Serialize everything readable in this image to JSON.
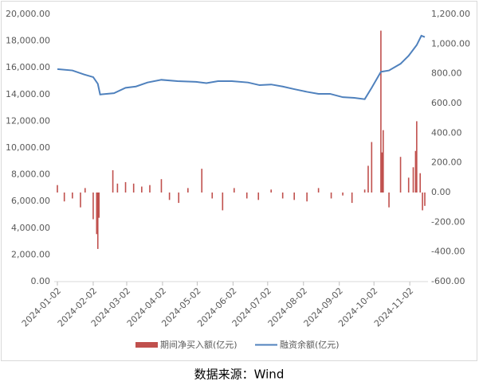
{
  "chart_data": {
    "type": "bar-line",
    "source": "数据来源：Wind",
    "xlim": [
      "2024-01-02",
      "2024-11-15"
    ],
    "xticks": [
      "2024-01-02",
      "2024-02-02",
      "2024-03-02",
      "2024-04-02",
      "2024-05-02",
      "2024-06-02",
      "2024-07-02",
      "2024-08-02",
      "2024-09-02",
      "2024-10-02",
      "2024-11-02"
    ],
    "ylim": [
      0,
      20000
    ],
    "yticks": [
      {
        "value": 0,
        "label": "0.00"
      },
      {
        "value": 2000,
        "label": "2,000.00"
      },
      {
        "value": 4000,
        "label": "4,000.00"
      },
      {
        "value": 6000,
        "label": "6,000.00"
      },
      {
        "value": 8000,
        "label": "8,000.00"
      },
      {
        "value": 10000,
        "label": "10,000.00"
      },
      {
        "value": 12000,
        "label": "12,000.00"
      },
      {
        "value": 14000,
        "label": "14,000.00"
      },
      {
        "value": 16000,
        "label": "16,000.00"
      },
      {
        "value": 18000,
        "label": "18,000.00"
      },
      {
        "value": 20000,
        "label": "20,000.00"
      }
    ],
    "y2lim": [
      -600,
      1200
    ],
    "y2ticks": [
      {
        "value": -600,
        "label": "-600.00"
      },
      {
        "value": -400,
        "label": "-400.00"
      },
      {
        "value": -200,
        "label": "-200.00"
      },
      {
        "value": 0,
        "label": "0.00"
      },
      {
        "value": 200,
        "label": "200.00"
      },
      {
        "value": 400,
        "label": "400.00"
      },
      {
        "value": 600,
        "label": "600.00"
      },
      {
        "value": 800,
        "label": "800.00"
      },
      {
        "value": 1000,
        "label": "1,000.00"
      },
      {
        "value": 1200,
        "label": "1,200.00"
      }
    ],
    "series": [
      {
        "name": "期间净买入额(亿元)",
        "type": "bar",
        "axis": "y2",
        "color": "#c0504d",
        "x": [
          "2024-01-02",
          "2024-01-08",
          "2024-01-15",
          "2024-01-22",
          "2024-01-26",
          "2024-02-02",
          "2024-02-05",
          "2024-02-06",
          "2024-02-07",
          "2024-02-19",
          "2024-02-23",
          "2024-03-01",
          "2024-03-08",
          "2024-03-15",
          "2024-03-22",
          "2024-04-01",
          "2024-04-08",
          "2024-04-16",
          "2024-04-24",
          "2024-05-06",
          "2024-05-15",
          "2024-05-24",
          "2024-06-03",
          "2024-06-14",
          "2024-06-24",
          "2024-07-05",
          "2024-07-15",
          "2024-07-25",
          "2024-08-05",
          "2024-08-15",
          "2024-08-26",
          "2024-09-05",
          "2024-09-13",
          "2024-09-24",
          "2024-09-27",
          "2024-09-30",
          "2024-10-08",
          "2024-10-09",
          "2024-10-10",
          "2024-10-15",
          "2024-10-25",
          "2024-11-01",
          "2024-11-05",
          "2024-11-07",
          "2024-11-08",
          "2024-11-11",
          "2024-11-13",
          "2024-11-15"
        ],
        "values": [
          50,
          -60,
          -40,
          -100,
          30,
          -180,
          -280,
          -380,
          -170,
          150,
          60,
          70,
          60,
          40,
          50,
          90,
          -50,
          -70,
          30,
          160,
          -40,
          -120,
          30,
          -40,
          -50,
          20,
          -40,
          -50,
          -60,
          30,
          -40,
          -20,
          -70,
          20,
          180,
          340,
          1090,
          270,
          420,
          -100,
          240,
          100,
          170,
          280,
          480,
          130,
          -120,
          -90
        ]
      },
      {
        "name": "融资余额(亿元)",
        "type": "line",
        "axis": "y",
        "color": "#4f81bd",
        "x": [
          "2024-01-02",
          "2024-01-15",
          "2024-01-25",
          "2024-02-02",
          "2024-02-06",
          "2024-02-08",
          "2024-02-20",
          "2024-03-01",
          "2024-03-10",
          "2024-03-20",
          "2024-04-01",
          "2024-04-15",
          "2024-05-01",
          "2024-05-10",
          "2024-05-20",
          "2024-06-01",
          "2024-06-15",
          "2024-06-25",
          "2024-07-05",
          "2024-07-15",
          "2024-07-25",
          "2024-08-05",
          "2024-08-15",
          "2024-08-25",
          "2024-09-05",
          "2024-09-15",
          "2024-09-24",
          "2024-09-30",
          "2024-10-08",
          "2024-10-15",
          "2024-10-25",
          "2024-11-01",
          "2024-11-08",
          "2024-11-12",
          "2024-11-15"
        ],
        "values": [
          15900,
          15800,
          15500,
          15300,
          14800,
          14000,
          14100,
          14500,
          14600,
          14900,
          15100,
          15000,
          14950,
          14850,
          15000,
          15000,
          14900,
          14700,
          14750,
          14600,
          14400,
          14200,
          14050,
          14050,
          13800,
          13750,
          13650,
          14500,
          15700,
          15800,
          16300,
          16900,
          17700,
          18400,
          18300
        ]
      }
    ]
  }
}
